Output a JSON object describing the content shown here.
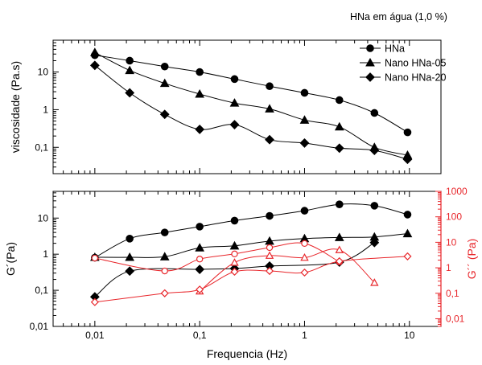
{
  "chart_data": [
    {
      "type": "line",
      "title": "HNa em água (1,0 %)",
      "xlabel": "",
      "ylabel": "viscosidade (Pa.s)",
      "x_scale": "log",
      "y_scale": "log",
      "xlim": [
        0.004,
        20
      ],
      "ylim": [
        0.02,
        70
      ],
      "grid": false,
      "legend_position": "top-right",
      "y_ticks": [
        0.1,
        1,
        10
      ],
      "y_tick_labels": [
        "0,1",
        "1",
        "10"
      ],
      "series": [
        {
          "name": "HNa",
          "marker": "circle",
          "color": "#000000",
          "x": [
            0.01,
            0.0215,
            0.0464,
            0.1,
            0.215,
            0.464,
            1,
            2.15,
            4.64,
            9.6
          ],
          "y": [
            28,
            20,
            14,
            10,
            6.5,
            4.2,
            2.8,
            1.8,
            0.82,
            0.25
          ]
        },
        {
          "name": "Nano HNa-05",
          "marker": "triangle",
          "color": "#000000",
          "x": [
            0.01,
            0.0215,
            0.0464,
            0.1,
            0.215,
            0.464,
            1,
            2.15,
            4.64,
            9.6
          ],
          "y": [
            33,
            11,
            5,
            2.6,
            1.5,
            1.05,
            0.53,
            0.35,
            0.1,
            0.062
          ]
        },
        {
          "name": "Nano HNa-20",
          "marker": "diamond",
          "color": "#000000",
          "x": [
            0.01,
            0.0215,
            0.0464,
            0.1,
            0.215,
            0.464,
            1,
            2.15,
            4.64,
            9.6
          ],
          "y": [
            15,
            2.8,
            0.75,
            0.3,
            0.4,
            0.16,
            0.13,
            0.095,
            0.083,
            0.048
          ]
        }
      ]
    },
    {
      "type": "line",
      "xlabel": "Frequencia (Hz)",
      "ylabel": "G´(Pa)",
      "y2label": "G´´ (Pa)",
      "x_scale": "log",
      "y_scale": "log",
      "xlim": [
        0.004,
        20
      ],
      "ylim": [
        0.01,
        55
      ],
      "y2lim": [
        0.005,
        1000
      ],
      "grid": false,
      "x_ticks": [
        0.01,
        0.1,
        1,
        10
      ],
      "x_tick_labels": [
        "0,01",
        "0,1",
        "1",
        "10"
      ],
      "y_ticks": [
        0.01,
        0.1,
        1,
        10
      ],
      "y_tick_labels": [
        "0,01",
        "0,1",
        "1",
        "10"
      ],
      "y2_ticks": [
        0.01,
        0.1,
        1,
        10,
        100,
        1000
      ],
      "y2_tick_labels": [
        "0,01",
        "0,1",
        "1",
        "10",
        "100",
        "1000"
      ],
      "series": [
        {
          "name": "HNa",
          "axis": "left",
          "marker": "circle",
          "color": "#000000",
          "x": [
            0.01,
            0.0215,
            0.0464,
            0.1,
            0.215,
            0.464,
            1,
            2.15,
            4.64,
            9.6
          ],
          "y": [
            0.8,
            2.7,
            4,
            5.8,
            8.5,
            11.5,
            16,
            24,
            22,
            12.5
          ]
        },
        {
          "name": "Nano HNa-05",
          "axis": "left",
          "marker": "triangle",
          "color": "#000000",
          "x": [
            0.01,
            0.0215,
            0.0464,
            0.1,
            0.215,
            0.464,
            1,
            2.15,
            4.64,
            9.6
          ],
          "y": [
            0.82,
            0.82,
            0.85,
            1.5,
            1.7,
            2.3,
            2.7,
            2.9,
            3,
            3.7
          ]
        },
        {
          "name": "Nano HNa-20",
          "axis": "left",
          "marker": "diamond",
          "color": "#000000",
          "x": [
            0.01,
            0.0215,
            0.1,
            0.215,
            0.464,
            2.15,
            4.64
          ],
          "y": [
            0.066,
            0.34,
            0.38,
            0.4,
            0.47,
            0.6,
            2.1
          ]
        },
        {
          "name": "HNa",
          "axis": "right",
          "marker": "circle-open",
          "color": "#e8262b",
          "x": [
            0.01,
            0.0464,
            0.1,
            0.215,
            0.464,
            1,
            2.15
          ],
          "y": [
            2.4,
            0.75,
            2.2,
            3.5,
            6.2,
            9,
            1.7
          ]
        },
        {
          "name": "Nano HNa-05",
          "axis": "right",
          "marker": "triangle-open",
          "color": "#e8262b",
          "x": [
            0.1,
            0.215,
            0.464,
            1,
            2.15,
            4.64
          ],
          "y": [
            0.12,
            1.6,
            3,
            2.5,
            5,
            0.26
          ]
        },
        {
          "name": "Nano HNa-20",
          "axis": "right",
          "marker": "diamond-open",
          "color": "#e8262b",
          "x": [
            0.01,
            0.0464,
            0.1,
            0.215,
            0.464,
            1,
            2.15,
            9.6
          ],
          "y": [
            0.045,
            0.1,
            0.14,
            0.7,
            0.75,
            0.65,
            1.8,
            2.8
          ]
        }
      ]
    }
  ]
}
